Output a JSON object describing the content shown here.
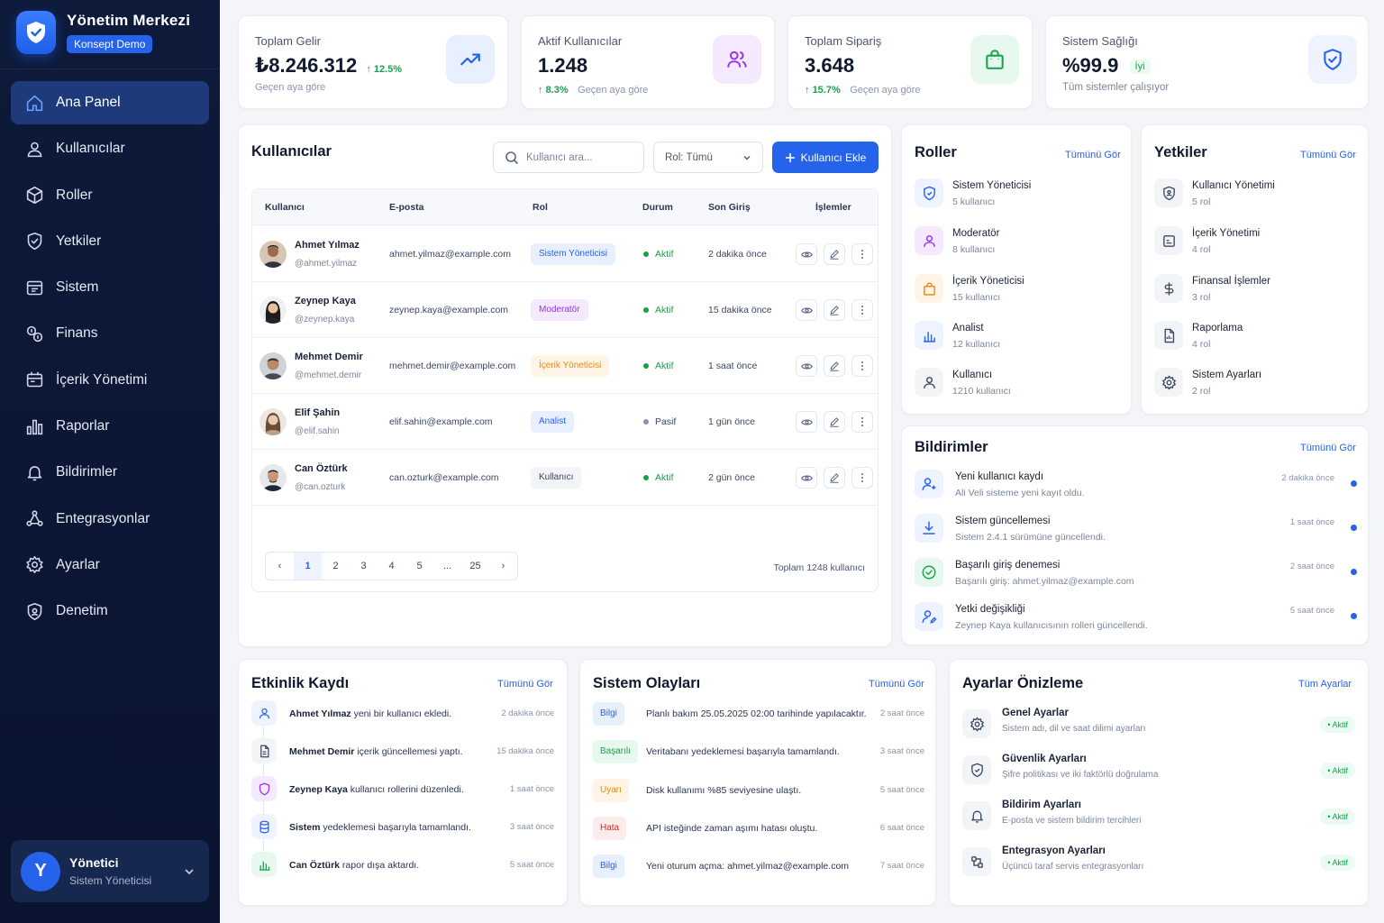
{
  "brand": {
    "title": "Yönetim Merkezi",
    "badge": "Konsept Demo"
  },
  "nav": [
    {
      "label": "Ana Panel",
      "icon": "home-icon"
    },
    {
      "label": "Kullanıcılar",
      "icon": "users-icon"
    },
    {
      "label": "Roller",
      "icon": "cube-icon"
    },
    {
      "label": "Yetkiler",
      "icon": "shield-check-icon"
    },
    {
      "label": "Sistem",
      "icon": "server-icon"
    },
    {
      "label": "Finans",
      "icon": "finance-icon"
    },
    {
      "label": "İçerik Yönetimi",
      "icon": "content-icon"
    },
    {
      "label": "Raporlar",
      "icon": "bar-chart-icon"
    },
    {
      "label": "Bildirimler",
      "icon": "bell-icon"
    },
    {
      "label": "Entegrasyonlar",
      "icon": "integration-icon"
    },
    {
      "label": "Ayarlar",
      "icon": "gear-icon"
    },
    {
      "label": "Denetim",
      "icon": "audit-shield-icon"
    }
  ],
  "user": {
    "initial": "Y",
    "name": "Yönetici",
    "role": "Sistem Yöneticisi"
  },
  "stats": [
    {
      "label": "Toplam Gelir",
      "value": "₺8.246.312",
      "trend": "12.5%",
      "sub": "Geçen aya göre",
      "icon": "trend-up-icon",
      "color": "#2563eb"
    },
    {
      "label": "Aktif Kullanıcılar",
      "value": "1.248",
      "trend": "8.3%",
      "sub": "Geçen aya göre",
      "icon": "users-icon",
      "color": "#9333ea"
    },
    {
      "label": "Toplam Sipariş",
      "value": "3.648",
      "trend": "15.7%",
      "sub": "Geçen aya göre",
      "icon": "shopping-bag-icon",
      "color": "#16a34a"
    },
    {
      "label": "Sistem Sağlığı",
      "value": "%99.9",
      "tag": "İyi",
      "sub": "Tüm sistemler çalışıyor",
      "icon": "shield-icon",
      "color": "#2563eb"
    }
  ],
  "users_panel": {
    "title": "Kullanıcılar",
    "search_placeholder": "Kullanıcı ara...",
    "role_filter": "Rol: Tümü",
    "add_button": "Kullanıcı Ekle",
    "columns": [
      "Kullanıcı",
      "E-posta",
      "Rol",
      "Durum",
      "Son Giriş",
      "İşlemler"
    ],
    "rows": [
      {
        "name": "Ahmet Yılmaz",
        "handle": "@ahmet.yilmaz",
        "email": "ahmet.yilmaz@example.com",
        "role": "Sistem Yöneticisi",
        "status": "Aktif",
        "last": "2 dakika önce"
      },
      {
        "name": "Zeynep Kaya",
        "handle": "@zeynep.kaya",
        "email": "zeynep.kaya@example.com",
        "role": "Moderatör",
        "status": "Aktif",
        "last": "15 dakika önce"
      },
      {
        "name": "Mehmet Demir",
        "handle": "@mehmet.demir",
        "email": "mehmet.demir@example.com",
        "role": "İçerik Yöneticisi",
        "status": "Aktif",
        "last": "1 saat önce"
      },
      {
        "name": "Elif Şahin",
        "handle": "@elif.sahin",
        "email": "elif.sahin@example.com",
        "role": "Analist",
        "status": "Pasif",
        "last": "1 gün önce"
      },
      {
        "name": "Can Öztürk",
        "handle": "@can.ozturk",
        "email": "can.ozturk@example.com",
        "role": "Kullanıcı",
        "status": "Aktif",
        "last": "2 gün önce"
      }
    ],
    "pages": [
      "1",
      "2",
      "3",
      "4",
      "5",
      "...",
      "25"
    ],
    "total": "Toplam 1248 kullanıcı"
  },
  "roles_panel": {
    "title": "Roller",
    "link": "Tümünü Gör",
    "items": [
      {
        "name": "Sistem Yöneticisi",
        "count": "5 kullanıcı",
        "icon": "shield-icon"
      },
      {
        "name": "Moderatör",
        "count": "8 kullanıcı",
        "icon": "user-icon"
      },
      {
        "name": "İçerik Yöneticisi",
        "count": "15 kullanıcı",
        "icon": "bag-icon"
      },
      {
        "name": "Analist",
        "count": "12 kullanıcı",
        "icon": "bar-chart-icon"
      },
      {
        "name": "Kullanıcı",
        "count": "1210 kullanıcı",
        "icon": "user-icon"
      }
    ]
  },
  "perms_panel": {
    "title": "Yetkiler",
    "link": "Tümünü Gör",
    "items": [
      {
        "name": "Kullanıcı Yönetimi",
        "count": "5 rol",
        "icon": "shield-user-icon"
      },
      {
        "name": "İçerik Yönetimi",
        "count": "4 rol",
        "icon": "content-icon"
      },
      {
        "name": "Finansal İşlemler",
        "count": "3 rol",
        "icon": "dollar-icon"
      },
      {
        "name": "Raporlama",
        "count": "4 rol",
        "icon": "report-icon"
      },
      {
        "name": "Sistem Ayarları",
        "count": "2 rol",
        "icon": "gear-icon"
      }
    ]
  },
  "notifications": {
    "title": "Bildirimler",
    "link": "Tümünü Gör",
    "items": [
      {
        "title": "Yeni kullanıcı kaydı",
        "sub": "Ali Veli sisteme yeni kayıt oldu.",
        "time": "2 dakika önce",
        "icon": "user-plus-icon"
      },
      {
        "title": "Sistem güncellemesi",
        "sub": "Sistem 2.4.1 sürümüne güncellendi.",
        "time": "1 saat önce",
        "icon": "download-icon"
      },
      {
        "title": "Başarılı giriş denemesi",
        "sub": "Başarılı giriş: ahmet.yilmaz@example.com",
        "time": "2 saat önce",
        "icon": "check-circle-icon"
      },
      {
        "title": "Yetki değişikliği",
        "sub": "Zeynep Kaya kullanıcısının rolleri güncellendi.",
        "time": "5 saat önce",
        "icon": "user-edit-icon"
      }
    ]
  },
  "activity": {
    "title": "Etkinlik Kaydı",
    "link": "Tümünü Gör",
    "items": [
      {
        "actor": "Ahmet Yılmaz",
        "text": " yeni bir kullanıcı ekledi.",
        "time": "2 dakika önce",
        "icon": "user-icon"
      },
      {
        "actor": "Mehmet Demir",
        "text": " içerik güncellemesi yaptı.",
        "time": "15 dakika önce",
        "icon": "file-icon"
      },
      {
        "actor": "Zeynep Kaya",
        "text": " kullanıcı rollerini düzenledi.",
        "time": "1 saat önce",
        "icon": "shield-icon"
      },
      {
        "actor": "Sistem",
        "text": " yedeklemesi başarıyla tamamlandı.",
        "time": "3 saat önce",
        "icon": "database-icon"
      },
      {
        "actor": "Can Öztürk",
        "text": " rapor dışa aktardı.",
        "time": "5 saat önce",
        "icon": "bar-chart-icon"
      }
    ]
  },
  "events": {
    "title": "Sistem Olayları",
    "link": "Tümünü Gör",
    "items": [
      {
        "tag": "Bilgi",
        "text": "Planlı bakım 25.05.2025 02:00 tarihinde yapılacaktır.",
        "time": "2 saat önce",
        "bg": "#e8f0ff",
        "fg": "#2563eb"
      },
      {
        "tag": "Başarılı",
        "text": "Veritabanı yedeklemesi başarıyla tamamlandı.",
        "time": "3 saat önce",
        "bg": "#e7f8ee",
        "fg": "#16a34a"
      },
      {
        "tag": "Uyarı",
        "text": "Disk kullanımı %85 seviyesine ulaştı.",
        "time": "5 saat önce",
        "bg": "#fff4e5",
        "fg": "#ea8a0c"
      },
      {
        "tag": "Hata",
        "text": "API isteğinde zaman aşımı hatası oluştu.",
        "time": "6 saat önce",
        "bg": "#fdecec",
        "fg": "#dc2626"
      },
      {
        "tag": "Bilgi",
        "text": "Yeni oturum açma: ahmet.yilmaz@example.com",
        "time": "7 saat önce",
        "bg": "#e8f0ff",
        "fg": "#2563eb"
      }
    ]
  },
  "settings": {
    "title": "Ayarlar Önizleme",
    "link": "Tüm Ayarlar",
    "items": [
      {
        "title": "Genel Ayarlar",
        "sub": "Sistem adı, dil ve saat dilimi ayarları",
        "status": "Aktif",
        "icon": "gear-icon"
      },
      {
        "title": "Güvenlik Ayarları",
        "sub": "Şifre politikası ve iki faktörlü doğrulama",
        "status": "Aktif",
        "icon": "shield-icon"
      },
      {
        "title": "Bildirim Ayarları",
        "sub": "E-posta ve sistem bildirim tercihleri",
        "status": "Aktif",
        "icon": "bell-icon"
      },
      {
        "title": "Entegrasyon Ayarları",
        "sub": "Üçüncü taraf servis entegrasyonları",
        "status": "Aktif",
        "icon": "integration-icon"
      }
    ]
  }
}
